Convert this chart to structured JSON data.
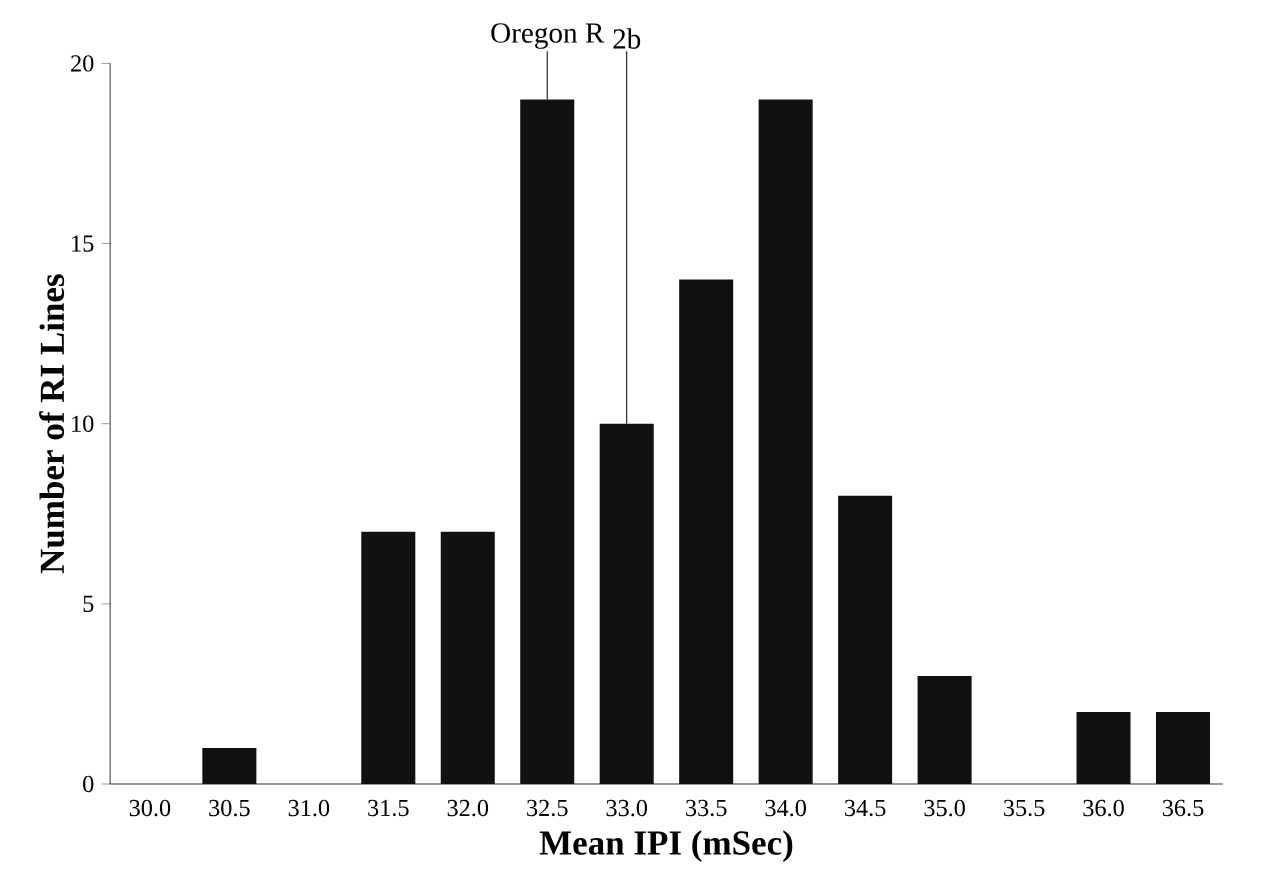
{
  "chart_data": {
    "type": "bar",
    "xlabel": "Mean IPI (mSec)",
    "ylabel": "Number of RI Lines",
    "categories": [
      "30.0",
      "30.5",
      "31.0",
      "31.5",
      "32.0",
      "32.5",
      "33.0",
      "33.5",
      "34.0",
      "34.5",
      "35.0",
      "35.5",
      "36.0",
      "36.5"
    ],
    "values": [
      0,
      1,
      0,
      7,
      7,
      19,
      10,
      14,
      19,
      8,
      3,
      0,
      2,
      2
    ],
    "color": "#111111",
    "ylim": [
      0,
      20
    ],
    "yticks": [
      0,
      5,
      10,
      15,
      20
    ],
    "annotations": [
      {
        "text": "Oregon R",
        "x": "32.5",
        "y": 19
      },
      {
        "text": "2b",
        "x": "33.0",
        "y": 10
      }
    ]
  }
}
